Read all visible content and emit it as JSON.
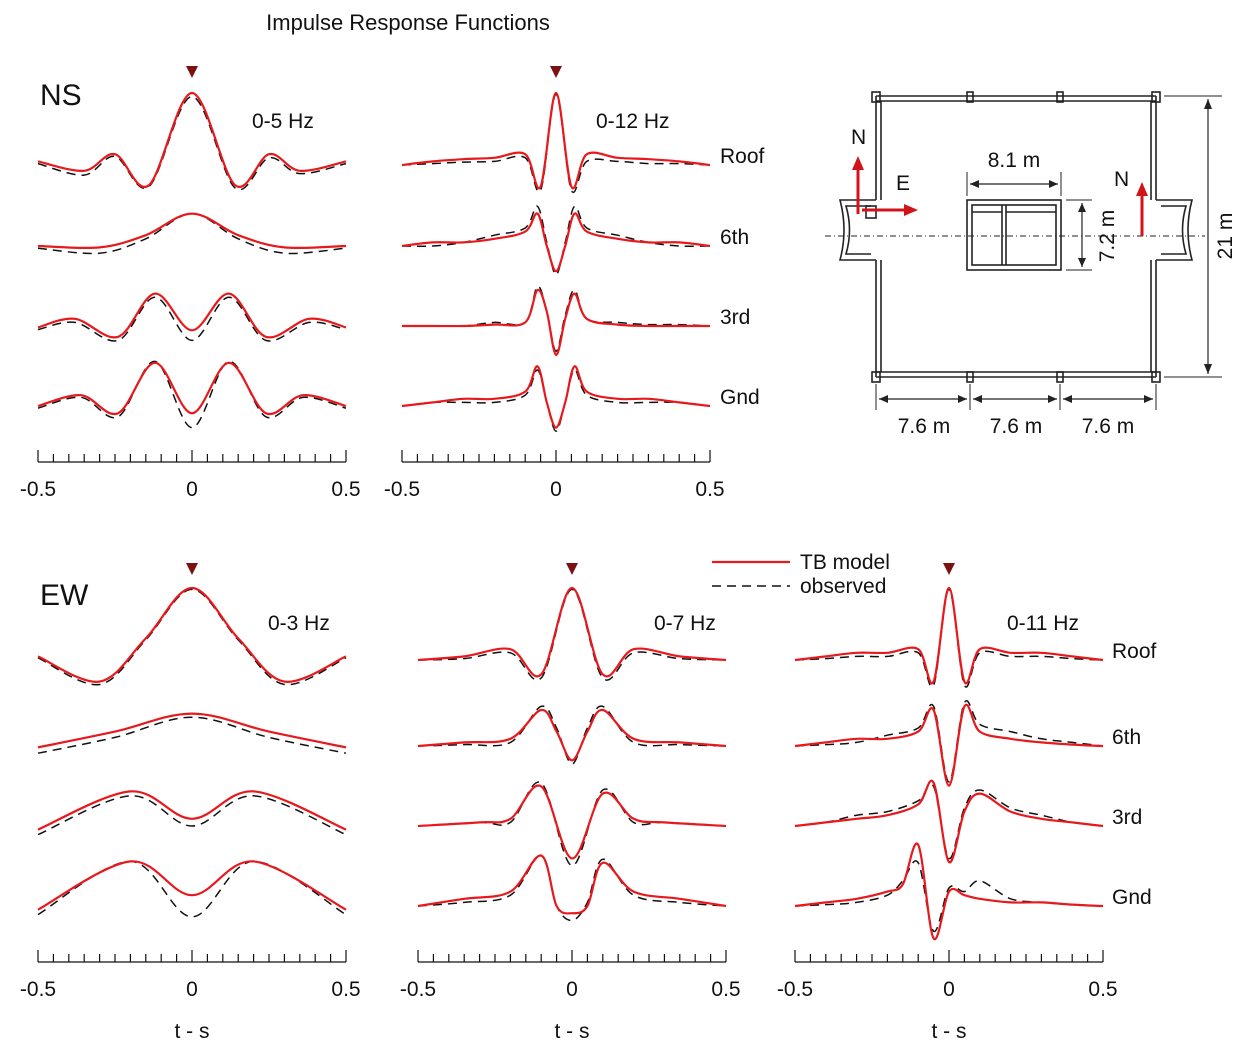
{
  "title": "Impulse Response Functions",
  "legend": {
    "model": "TB model",
    "observed": "observed",
    "placement": "top-center of lower row"
  },
  "colors": {
    "model": "#e8191d",
    "observed": "#111111",
    "marker": "#7a1212",
    "arrow": "#d0141a",
    "plan": "#222222"
  },
  "plan": {
    "labels": {
      "north_left": "N",
      "east": "E",
      "north_right": "N",
      "core_width": "8.1 m",
      "core_depth": "7.2 m",
      "height": "21 m",
      "span_1": "7.6 m",
      "span_2": "7.6 m",
      "span_3": "7.6 m"
    }
  },
  "chart_data": [
    {
      "type": "line",
      "component": "NS",
      "band": "0-5 Hz",
      "show_levels": false,
      "xlabel": "",
      "xlim": [
        -0.5,
        0.5
      ],
      "x_ticks": [
        "-0.5",
        "0",
        "0.5"
      ],
      "levels": [
        "Roof",
        "6th",
        "3rd",
        "Gnd"
      ],
      "series": [
        {
          "level": "Roof",
          "x": [
            -0.5,
            -0.35,
            -0.25,
            -0.14,
            0,
            0.14,
            0.25,
            0.35,
            0.5
          ],
          "model": [
            0.05,
            -0.08,
            0.15,
            -0.28,
            1.0,
            -0.28,
            0.15,
            -0.08,
            0.05
          ],
          "observed": [
            0.02,
            -0.14,
            0.12,
            -0.3,
            0.95,
            -0.32,
            0.1,
            -0.12,
            0.02
          ]
        },
        {
          "level": "6th",
          "x": [
            -0.5,
            -0.3,
            -0.15,
            0,
            0.15,
            0.3,
            0.5
          ],
          "model": [
            0.0,
            -0.02,
            0.15,
            0.45,
            0.15,
            -0.02,
            0.0
          ],
          "observed": [
            -0.03,
            -0.1,
            0.1,
            0.45,
            0.1,
            -0.1,
            -0.03
          ]
        },
        {
          "level": "3rd",
          "x": [
            -0.5,
            -0.38,
            -0.24,
            -0.12,
            0,
            0.12,
            0.24,
            0.38,
            0.5
          ],
          "model": [
            -0.02,
            0.1,
            -0.15,
            0.45,
            -0.06,
            0.45,
            -0.15,
            0.1,
            -0.02
          ],
          "observed": [
            -0.05,
            0.05,
            -0.2,
            0.4,
            -0.2,
            0.4,
            -0.2,
            0.05,
            -0.05
          ]
        },
        {
          "level": "Gnd",
          "x": [
            -0.5,
            -0.36,
            -0.24,
            -0.12,
            0,
            0.12,
            0.24,
            0.36,
            0.5
          ],
          "model": [
            0.0,
            0.15,
            -0.1,
            0.6,
            -0.1,
            0.6,
            -0.1,
            0.15,
            0.0
          ],
          "observed": [
            -0.03,
            0.12,
            -0.15,
            0.62,
            -0.3,
            0.62,
            -0.15,
            0.12,
            -0.03
          ]
        }
      ]
    },
    {
      "type": "line",
      "component": "NS",
      "band": "0-12 Hz",
      "show_levels": true,
      "xlabel": "",
      "xlim": [
        -0.5,
        0.5
      ],
      "x_ticks": [
        "-0.5",
        "0",
        "0.5"
      ],
      "levels": [
        "Roof",
        "6th",
        "3rd",
        "Gnd"
      ],
      "series": [
        {
          "level": "Roof",
          "x": [
            -0.5,
            -0.4,
            -0.3,
            -0.2,
            -0.1,
            -0.05,
            0,
            0.05,
            0.1,
            0.2,
            0.3,
            0.4,
            0.5
          ],
          "model": [
            0.0,
            0.05,
            0.08,
            0.1,
            0.15,
            -0.3,
            1.0,
            -0.3,
            0.15,
            0.1,
            0.08,
            0.05,
            0.0
          ],
          "observed": [
            0.0,
            0.02,
            0.04,
            0.05,
            0.1,
            -0.35,
            0.98,
            -0.35,
            0.05,
            0.05,
            0.02,
            0.02,
            0.0
          ]
        },
        {
          "level": "6th",
          "x": [
            -0.5,
            -0.4,
            -0.3,
            -0.2,
            -0.1,
            -0.06,
            -0.03,
            0,
            0.03,
            0.06,
            0.1,
            0.2,
            0.3,
            0.4,
            0.5
          ],
          "model": [
            0.0,
            0.05,
            0.05,
            0.1,
            0.2,
            0.45,
            0.0,
            -0.35,
            0.0,
            0.45,
            0.2,
            0.1,
            0.05,
            0.05,
            0.0
          ],
          "observed": [
            0.0,
            0.0,
            0.05,
            0.15,
            0.25,
            0.55,
            0.05,
            -0.4,
            0.05,
            0.55,
            0.25,
            0.15,
            0.05,
            0.0,
            0.0
          ]
        },
        {
          "level": "3rd",
          "x": [
            -0.5,
            -0.4,
            -0.3,
            -0.2,
            -0.1,
            -0.06,
            -0.03,
            0,
            0.03,
            0.06,
            0.1,
            0.2,
            0.3,
            0.4,
            0.5
          ],
          "model": [
            0.0,
            0.0,
            0.0,
            0.02,
            0.05,
            0.5,
            0.2,
            -0.4,
            0.1,
            0.45,
            0.1,
            0.02,
            0.0,
            0.0,
            0.0
          ],
          "observed": [
            0.0,
            0.0,
            0.0,
            0.05,
            0.05,
            0.55,
            0.2,
            -0.35,
            0.15,
            0.5,
            0.1,
            0.05,
            0.02,
            0.02,
            0.0
          ]
        },
        {
          "level": "Gnd",
          "x": [
            -0.5,
            -0.4,
            -0.3,
            -0.2,
            -0.1,
            -0.06,
            -0.03,
            0,
            0.03,
            0.06,
            0.1,
            0.2,
            0.3,
            0.4,
            0.5
          ],
          "model": [
            0.0,
            0.05,
            0.1,
            0.1,
            0.2,
            0.55,
            0.05,
            -0.3,
            0.05,
            0.55,
            0.2,
            0.1,
            0.1,
            0.05,
            0.0
          ],
          "observed": [
            0.0,
            0.05,
            0.05,
            0.05,
            0.15,
            0.5,
            0.05,
            -0.35,
            0.05,
            0.5,
            0.15,
            0.05,
            0.05,
            0.05,
            0.0
          ]
        }
      ]
    },
    {
      "type": "line",
      "component": "EW",
      "band": "0-3 Hz",
      "show_levels": false,
      "xlabel": "t - s",
      "xlim": [
        -0.5,
        0.5
      ],
      "x_ticks": [
        "-0.5",
        "0",
        "0.5"
      ],
      "levels": [
        "Roof",
        "6th",
        "3rd",
        "Gnd"
      ],
      "series": [
        {
          "level": "Roof",
          "x": [
            -0.5,
            -0.3,
            -0.15,
            0,
            0.15,
            0.3,
            0.5
          ],
          "model": [
            0.05,
            -0.3,
            0.3,
            1.0,
            0.3,
            -0.3,
            0.05
          ],
          "observed": [
            0.03,
            -0.34,
            0.28,
            0.98,
            0.28,
            -0.34,
            0.03
          ]
        },
        {
          "level": "6th",
          "x": [
            -0.5,
            -0.25,
            0,
            0.25,
            0.5
          ],
          "model": [
            -0.02,
            0.2,
            0.45,
            0.2,
            -0.02
          ],
          "observed": [
            -0.1,
            0.12,
            0.4,
            0.12,
            -0.1
          ]
        },
        {
          "level": "3rd",
          "x": [
            -0.5,
            -0.2,
            0,
            0.2,
            0.5
          ],
          "model": [
            -0.05,
            0.48,
            0.1,
            0.48,
            -0.05
          ],
          "observed": [
            -0.12,
            0.42,
            0.0,
            0.42,
            -0.12
          ]
        },
        {
          "level": "Gnd",
          "x": [
            -0.5,
            -0.2,
            0,
            0.2,
            0.5
          ],
          "model": [
            -0.05,
            0.62,
            0.15,
            0.62,
            -0.05
          ],
          "observed": [
            -0.12,
            0.62,
            -0.15,
            0.62,
            -0.12
          ]
        }
      ]
    },
    {
      "type": "line",
      "component": "EW",
      "band": "0-7 Hz",
      "show_levels": false,
      "xlabel": "t - s",
      "xlim": [
        -0.5,
        0.5
      ],
      "x_ticks": [
        "-0.5",
        "0",
        "0.5"
      ],
      "levels": [
        "Roof",
        "6th",
        "3rd",
        "Gnd"
      ],
      "series": [
        {
          "level": "Roof",
          "x": [
            -0.5,
            -0.35,
            -0.2,
            -0.1,
            0,
            0.1,
            0.2,
            0.35,
            0.5
          ],
          "model": [
            0.0,
            0.05,
            0.15,
            -0.2,
            1.0,
            -0.2,
            0.15,
            0.05,
            0.0
          ],
          "observed": [
            0.0,
            0.02,
            0.1,
            -0.25,
            0.98,
            -0.25,
            0.1,
            0.02,
            0.0
          ]
        },
        {
          "level": "6th",
          "x": [
            -0.5,
            -0.35,
            -0.2,
            -0.1,
            -0.05,
            0,
            0.05,
            0.1,
            0.2,
            0.35,
            0.5
          ],
          "model": [
            0.0,
            0.05,
            0.1,
            0.5,
            0.2,
            -0.2,
            0.2,
            0.5,
            0.1,
            0.05,
            0.0
          ],
          "observed": [
            0.0,
            0.02,
            0.05,
            0.55,
            0.25,
            -0.25,
            0.25,
            0.55,
            0.05,
            0.02,
            0.0
          ]
        },
        {
          "level": "3rd",
          "x": [
            -0.5,
            -0.3,
            -0.2,
            -0.1,
            0,
            0.1,
            0.2,
            0.3,
            0.5
          ],
          "model": [
            0.0,
            0.05,
            0.1,
            0.55,
            -0.45,
            0.45,
            0.1,
            0.05,
            0.0
          ],
          "observed": [
            0.0,
            0.05,
            0.05,
            0.6,
            -0.55,
            0.5,
            0.05,
            0.05,
            0.0
          ]
        },
        {
          "level": "Gnd",
          "x": [
            -0.5,
            -0.35,
            -0.2,
            -0.1,
            -0.05,
            0,
            0.05,
            0.1,
            0.2,
            0.35,
            0.5
          ],
          "model": [
            0.0,
            0.1,
            0.2,
            0.7,
            0.0,
            -0.1,
            0.0,
            0.6,
            0.2,
            0.1,
            0.0
          ],
          "observed": [
            0.0,
            0.05,
            0.15,
            0.7,
            0.0,
            -0.2,
            0.05,
            0.65,
            0.15,
            0.05,
            0.0
          ]
        }
      ]
    },
    {
      "type": "line",
      "component": "EW",
      "band": "0-11 Hz",
      "show_levels": true,
      "xlabel": "t - s",
      "xlim": [
        -0.5,
        0.5
      ],
      "x_ticks": [
        "-0.5",
        "0",
        "0.5"
      ],
      "levels": [
        "Roof",
        "6th",
        "3rd",
        "Gnd"
      ],
      "series": [
        {
          "level": "Roof",
          "x": [
            -0.5,
            -0.4,
            -0.3,
            -0.2,
            -0.1,
            -0.05,
            0,
            0.05,
            0.1,
            0.2,
            0.3,
            0.4,
            0.5
          ],
          "model": [
            0.0,
            0.05,
            0.1,
            0.1,
            0.15,
            -0.3,
            1.0,
            -0.3,
            0.15,
            0.1,
            0.1,
            0.05,
            0.0
          ],
          "observed": [
            0.0,
            0.02,
            0.05,
            0.05,
            0.1,
            -0.35,
            0.98,
            -0.35,
            0.1,
            0.05,
            0.05,
            0.02,
            0.0
          ]
        },
        {
          "level": "6th",
          "x": [
            -0.5,
            -0.4,
            -0.3,
            -0.2,
            -0.1,
            -0.05,
            0,
            0.05,
            0.1,
            0.2,
            0.3,
            0.4,
            0.5
          ],
          "model": [
            0.0,
            0.05,
            0.1,
            0.1,
            0.2,
            0.5,
            -0.55,
            0.55,
            0.2,
            0.1,
            0.05,
            0.02,
            0.0
          ],
          "observed": [
            0.0,
            0.02,
            0.05,
            0.15,
            0.25,
            0.55,
            -0.5,
            0.6,
            0.3,
            0.2,
            0.1,
            0.05,
            0.0
          ]
        },
        {
          "level": "3rd",
          "x": [
            -0.5,
            -0.4,
            -0.3,
            -0.2,
            -0.1,
            -0.05,
            0,
            0.05,
            0.1,
            0.2,
            0.3,
            0.4,
            0.5
          ],
          "model": [
            0.0,
            0.05,
            0.1,
            0.15,
            0.3,
            0.6,
            -0.5,
            0.2,
            0.45,
            0.2,
            0.1,
            0.05,
            0.0
          ],
          "observed": [
            0.0,
            0.05,
            0.15,
            0.2,
            0.35,
            0.55,
            -0.45,
            0.25,
            0.5,
            0.25,
            0.15,
            0.05,
            0.0
          ]
        },
        {
          "level": "Gnd",
          "x": [
            -0.5,
            -0.4,
            -0.3,
            -0.2,
            -0.15,
            -0.1,
            -0.05,
            0,
            0.05,
            0.1,
            0.2,
            0.3,
            0.4,
            0.5
          ],
          "model": [
            0.0,
            0.05,
            0.1,
            0.2,
            0.3,
            0.85,
            -0.45,
            0.2,
            0.15,
            0.1,
            0.05,
            0.05,
            0.02,
            0.0
          ],
          "observed": [
            0.0,
            0.02,
            0.05,
            0.15,
            0.35,
            0.6,
            -0.35,
            0.25,
            0.2,
            0.35,
            0.1,
            0.05,
            0.02,
            0.0
          ]
        }
      ]
    }
  ]
}
